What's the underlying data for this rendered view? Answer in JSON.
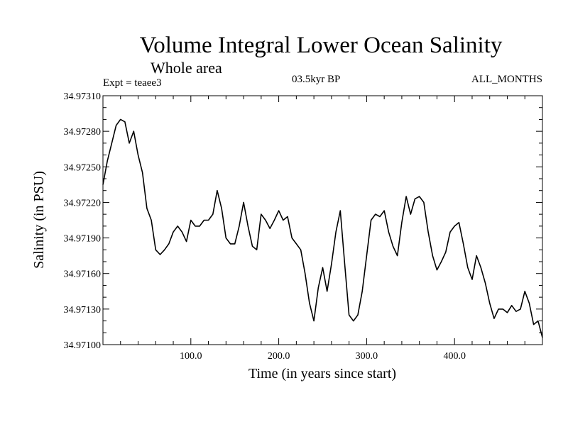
{
  "chart_data": {
    "type": "line",
    "title": "Volume Integral Lower Ocean Salinity",
    "subtitle": "Whole area",
    "experiment": "Expt = teaee3",
    "period": "03.5kyr BP",
    "months": "ALL_MONTHS",
    "xlabel": "Time (in years since start)",
    "ylabel": "Salinity (in PSU)",
    "xlim": [
      0,
      500
    ],
    "ylim": [
      34.971,
      34.9731
    ],
    "x_ticks": [
      100,
      200,
      300,
      400
    ],
    "x_tick_labels": [
      "100.0",
      "200.0",
      "300.0",
      "400.0"
    ],
    "y_ticks": [
      34.971,
      34.9713,
      34.9716,
      34.9719,
      34.9722,
      34.9725,
      34.9728,
      34.9731
    ],
    "y_tick_labels": [
      "34.97100",
      "34.97130",
      "34.97160",
      "34.97190",
      "34.97220",
      "34.97250",
      "34.97280",
      "34.97310"
    ],
    "grid": false,
    "line_color": "#000000",
    "series": [
      {
        "name": "Salinity",
        "x": [
          0,
          5,
          10,
          15,
          20,
          25,
          30,
          35,
          40,
          45,
          50,
          55,
          60,
          65,
          70,
          75,
          80,
          85,
          90,
          95,
          100,
          105,
          110,
          115,
          120,
          125,
          130,
          135,
          140,
          145,
          150,
          155,
          160,
          165,
          170,
          175,
          180,
          185,
          190,
          195,
          200,
          205,
          210,
          215,
          220,
          225,
          230,
          235,
          240,
          245,
          250,
          255,
          260,
          265,
          270,
          275,
          280,
          285,
          290,
          295,
          300,
          305,
          310,
          315,
          320,
          325,
          330,
          335,
          340,
          345,
          350,
          355,
          360,
          365,
          370,
          375,
          380,
          385,
          390,
          395,
          400,
          405,
          410,
          415,
          420,
          425,
          430,
          435,
          440,
          445,
          450,
          455,
          460,
          465,
          470,
          475,
          480,
          485,
          490,
          495,
          500
        ],
        "values": [
          34.97235,
          34.97255,
          34.9727,
          34.97285,
          34.9729,
          34.97288,
          34.9727,
          34.9728,
          34.9726,
          34.97245,
          34.97215,
          34.97205,
          34.9718,
          34.97176,
          34.9718,
          34.97185,
          34.97195,
          34.972,
          34.97195,
          34.97187,
          34.97205,
          34.972,
          34.972,
          34.97205,
          34.97205,
          34.9721,
          34.9723,
          34.97215,
          34.9719,
          34.97185,
          34.97185,
          34.972,
          34.9722,
          34.972,
          34.97183,
          34.9718,
          34.9721,
          34.97205,
          34.97198,
          34.97205,
          34.97213,
          34.97205,
          34.97208,
          34.9719,
          34.97185,
          34.9718,
          34.9716,
          34.97135,
          34.9712,
          34.97148,
          34.97165,
          34.97145,
          34.97168,
          34.97195,
          34.97213,
          34.97168,
          34.97125,
          34.9712,
          34.97125,
          34.97145,
          34.97175,
          34.97205,
          34.9721,
          34.97208,
          34.97213,
          34.97195,
          34.97183,
          34.97175,
          34.97203,
          34.97225,
          34.9721,
          34.97223,
          34.97225,
          34.9722,
          34.97195,
          34.97175,
          34.97163,
          34.9717,
          34.97178,
          34.97195,
          34.972,
          34.97203,
          34.97185,
          34.97165,
          34.97155,
          34.97175,
          34.97165,
          34.97152,
          34.97135,
          34.97122,
          34.9713,
          34.9713,
          34.97127,
          34.97133,
          34.97128,
          34.9713,
          34.97145,
          34.97135,
          34.97117,
          34.9712,
          34.97106
        ]
      }
    ]
  }
}
